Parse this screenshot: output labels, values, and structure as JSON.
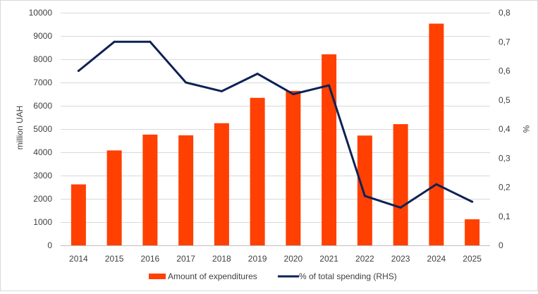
{
  "chart_data": {
    "type": "bar",
    "categories": [
      "2014",
      "2015",
      "2016",
      "2017",
      "2018",
      "2019",
      "2020",
      "2021",
      "2022",
      "2023",
      "2024",
      "2025"
    ],
    "series": [
      {
        "name": "Amount of expenditures",
        "type": "bar",
        "axis": "left",
        "color": "#ff4000",
        "values": [
          2620,
          4080,
          4760,
          4730,
          5250,
          6340,
          6640,
          8210,
          4720,
          5210,
          9530,
          1120
        ]
      },
      {
        "name": "% of total spending (RHS)",
        "type": "line",
        "axis": "right",
        "color": "#0f2256",
        "values": [
          0.6,
          0.7,
          0.7,
          0.56,
          0.53,
          0.59,
          0.52,
          0.55,
          0.17,
          0.13,
          0.21,
          0.15
        ]
      }
    ],
    "ylabel": "million UAH",
    "ylabel_right": "%",
    "ylim": [
      0,
      10000
    ],
    "ylim_right": [
      0,
      0.8
    ],
    "yticks": [
      "0",
      "1000",
      "2000",
      "3000",
      "4000",
      "5000",
      "6000",
      "7000",
      "8000",
      "9000",
      "10000"
    ],
    "yticks_right": [
      "0",
      "0,1",
      "0,2",
      "0,3",
      "0,4",
      "0,5",
      "0,6",
      "0,7",
      "0,8"
    ],
    "grid": true,
    "legend_position": "bottom"
  }
}
